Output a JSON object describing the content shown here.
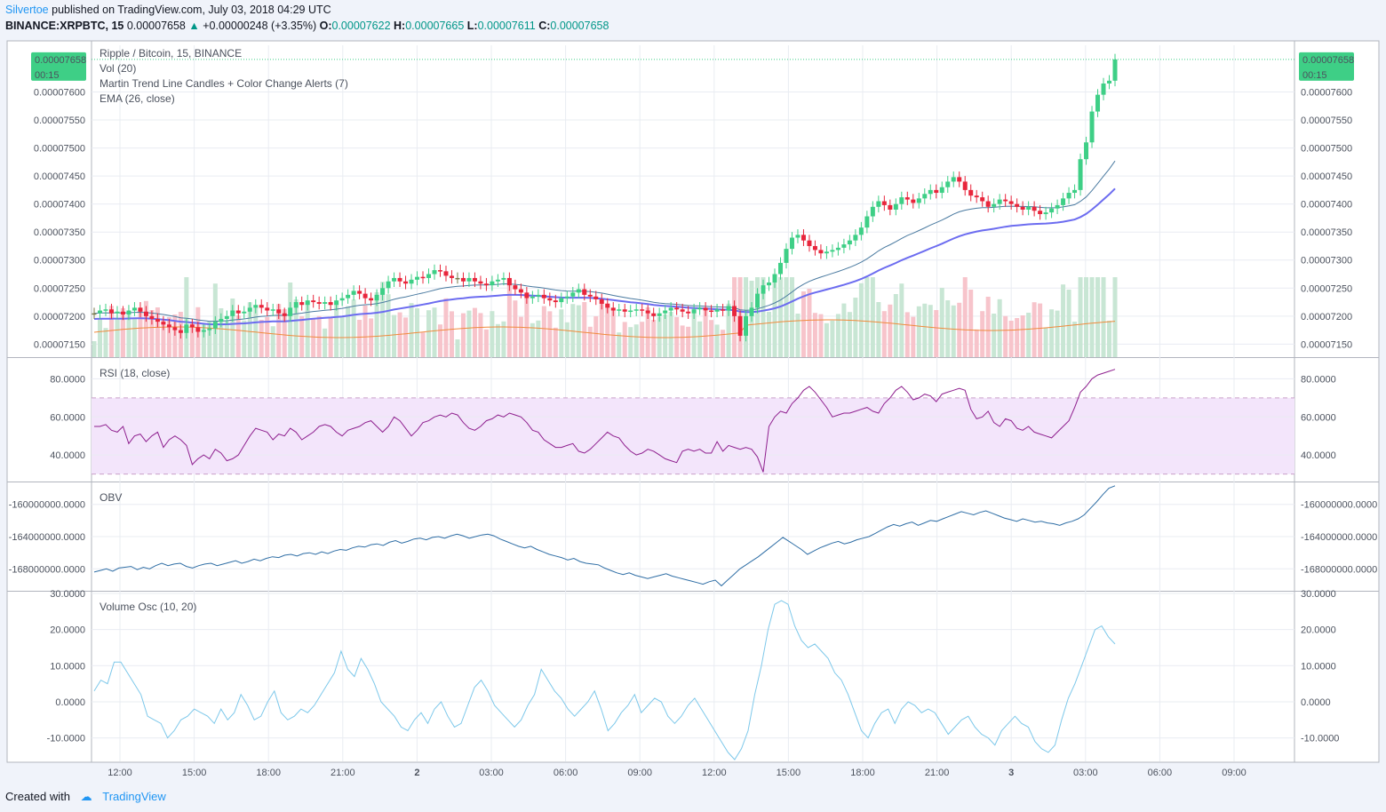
{
  "header": {
    "author": "Silvertoe",
    "published": "published on TradingView.com, July 03, 2018 04:29 UTC",
    "symbol": "BINANCE:XRPBTC, 15",
    "price": "0.00007658",
    "change": "+0.00000248 (+3.35%)",
    "o_label": "O:",
    "o_value": "0.00007622",
    "h_label": "H:",
    "h_value": "0.00007665",
    "l_label": "L:",
    "l_value": "0.00007611",
    "c_label": "C:",
    "c_value": "0.00007658"
  },
  "footer": {
    "created_with": "Created with",
    "brand": "TradingView"
  },
  "colors": {
    "up": "#3ecf86",
    "down": "#e8263c",
    "neutral": "#7a7a4a",
    "vol_up": "#c8e6d4",
    "vol_down": "#f7c4cb",
    "trend": "#6c6cf0",
    "ema": "#4a7aa0",
    "vol_ma": "#f08a3c",
    "rsi": "#8e1f8e",
    "rsi_band": "#f3e5fb",
    "obv": "#2f6ea5",
    "vosc": "#7dc8ea",
    "price_tag": "#3ecf86"
  },
  "chart_data": [
    {
      "id": "price",
      "type": "candlestick",
      "title": "Ripple / Bitcoin, 15, BINANCE",
      "legend": [
        "Vol (20)",
        "Martin Trend Line Candles + Color Change Alerts (7)",
        "EMA (26, close)"
      ],
      "y_ticks": [
        "0.00007600",
        "0.00007550",
        "0.00007500",
        "0.00007450",
        "0.00007400",
        "0.00007350",
        "0.00007300",
        "0.00007250",
        "0.00007200",
        "0.00007150"
      ],
      "ylim": [
        7.13e-05,
        7.68e-05
      ],
      "last_price_tag": "0.00007658",
      "countdown": "00:15",
      "close": [
        7.205e-05,
        7.21e-05,
        7.212e-05,
        7.205e-05,
        7.208e-05,
        7.203e-05,
        7.21e-05,
        7.215e-05,
        7.208e-05,
        7.2e-05,
        7.195e-05,
        7.19e-05,
        7.185e-05,
        7.18e-05,
        7.175e-05,
        7.17e-05,
        7.185e-05,
        7.18e-05,
        7.172e-05,
        7.175e-05,
        7.178e-05,
        7.19e-05,
        7.195e-05,
        7.2e-05,
        7.21e-05,
        7.205e-05,
        7.208e-05,
        7.215e-05,
        7.22e-05,
        7.215e-05,
        7.21e-05,
        7.212e-05,
        7.205e-05,
        7.2e-05,
        7.215e-05,
        7.225e-05,
        7.22e-05,
        7.228e-05,
        7.225e-05,
        7.222e-05,
        7.225e-05,
        7.22e-05,
        7.228e-05,
        7.232e-05,
        7.238e-05,
        7.245e-05,
        7.24e-05,
        7.232e-05,
        7.228e-05,
        7.238e-05,
        7.25e-05,
        7.262e-05,
        7.268e-05,
        7.262e-05,
        7.258e-05,
        7.265e-05,
        7.27e-05,
        7.268e-05,
        7.275e-05,
        7.282e-05,
        7.28e-05,
        7.272e-05,
        7.268e-05,
        7.268e-05,
        7.262e-05,
        7.268e-05,
        7.262e-05,
        7.258e-05,
        7.255e-05,
        7.262e-05,
        7.265e-05,
        7.268e-05,
        7.255e-05,
        7.248e-05,
        7.242e-05,
        7.232e-05,
        7.235e-05,
        7.238e-05,
        7.232e-05,
        7.228e-05,
        7.225e-05,
        7.232e-05,
        7.235e-05,
        7.242e-05,
        7.248e-05,
        7.238e-05,
        7.235e-05,
        7.23e-05,
        7.222e-05,
        7.215e-05,
        7.21e-05,
        7.212e-05,
        7.208e-05,
        7.21e-05,
        7.212e-05,
        7.21e-05,
        7.205e-05,
        7.2e-05,
        7.205e-05,
        7.21e-05,
        7.215e-05,
        7.212e-05,
        7.208e-05,
        7.205e-05,
        7.212e-05,
        7.215e-05,
        7.21e-05,
        7.208e-05,
        7.212e-05,
        7.21e-05,
        7.218e-05,
        7.2e-05,
        7.165e-05,
        7.2e-05,
        7.215e-05,
        7.24e-05,
        7.255e-05,
        7.26e-05,
        7.275e-05,
        7.295e-05,
        7.32e-05,
        7.34e-05,
        7.345e-05,
        7.335e-05,
        7.325e-05,
        7.318e-05,
        7.312e-05,
        7.315e-05,
        7.318e-05,
        7.322e-05,
        7.328e-05,
        7.335e-05,
        7.345e-05,
        7.358e-05,
        7.378e-05,
        7.395e-05,
        7.405e-05,
        7.398e-05,
        7.39e-05,
        7.4e-05,
        7.412e-05,
        7.408e-05,
        7.402e-05,
        7.41e-05,
        7.418e-05,
        7.425e-05,
        7.42e-05,
        7.43e-05,
        7.44e-05,
        7.448e-05,
        7.44e-05,
        7.425e-05,
        7.415e-05,
        7.412e-05,
        7.405e-05,
        7.395e-05,
        7.4e-05,
        7.408e-05,
        7.405e-05,
        7.4e-05,
        7.395e-05,
        7.39e-05,
        7.395e-05,
        7.388e-05,
        7.382e-05,
        7.385e-05,
        7.392e-05,
        7.398e-05,
        7.41e-05,
        7.42e-05,
        7.425e-05,
        7.48e-05,
        7.51e-05,
        7.565e-05,
        7.595e-05,
        7.615e-05,
        7.62e-05,
        7.658e-05
      ]
    },
    {
      "id": "rsi",
      "type": "line",
      "title": "RSI (18, close)",
      "y_ticks": [
        "80.0000",
        "60.0000",
        "40.0000"
      ],
      "ylim": [
        27,
        90
      ],
      "band": [
        30,
        70
      ],
      "values": [
        55,
        55,
        56,
        53,
        52,
        55,
        46,
        50,
        51,
        47,
        50,
        52,
        44,
        48,
        50,
        48,
        45,
        35,
        38,
        40,
        38,
        43,
        41,
        37,
        38,
        40,
        45,
        50,
        54,
        53,
        52,
        48,
        51,
        50,
        54,
        52,
        48,
        50,
        52,
        55,
        56,
        55,
        52,
        50,
        53,
        54,
        55,
        57,
        58,
        55,
        52,
        55,
        60,
        58,
        54,
        50,
        53,
        57,
        58,
        60,
        61,
        60,
        62,
        61,
        57,
        54,
        53,
        55,
        58,
        59,
        61,
        60,
        62,
        61,
        60,
        57,
        53,
        52,
        48,
        46,
        44,
        44,
        45,
        46,
        42,
        41,
        43,
        46,
        49,
        52,
        50,
        49,
        45,
        42,
        40,
        41,
        43,
        42,
        40,
        38,
        37,
        36,
        42,
        43,
        42,
        43,
        41,
        41,
        47,
        42,
        45,
        44,
        43,
        44,
        43,
        39,
        31,
        55,
        60,
        63,
        62,
        67,
        70,
        74,
        76,
        73,
        69,
        65,
        60,
        61,
        62,
        62,
        63,
        64,
        65,
        63,
        62,
        67,
        70,
        74,
        76,
        73,
        69,
        70,
        72,
        71,
        68,
        72,
        73,
        74,
        75,
        74,
        64,
        59,
        60,
        63,
        57,
        55,
        59,
        58,
        54,
        53,
        55,
        52,
        51,
        50,
        49,
        52,
        55,
        58,
        65,
        73,
        76,
        80,
        82,
        83,
        84,
        85
      ]
    },
    {
      "id": "obv",
      "type": "line",
      "title": "OBV",
      "y_ticks": [
        "-160000000.0000",
        "-164000000.0000",
        "-168000000.0000"
      ],
      "ylim": [
        -170500000,
        -157500000
      ],
      "values": [
        -168400000,
        -168200000,
        -168000000,
        -168300000,
        -167900000,
        -167800000,
        -167700000,
        -168100000,
        -167800000,
        -168000000,
        -167600000,
        -167300000,
        -167600000,
        -167400000,
        -167300000,
        -167700000,
        -167900000,
        -167600000,
        -167400000,
        -167300000,
        -167600000,
        -167400000,
        -167200000,
        -167000000,
        -167300000,
        -167100000,
        -166800000,
        -167000000,
        -166700000,
        -166500000,
        -166600000,
        -166300000,
        -166200000,
        -166400000,
        -166100000,
        -166000000,
        -166200000,
        -165900000,
        -166100000,
        -165800000,
        -165600000,
        -165700000,
        -165400000,
        -165200000,
        -165300000,
        -165000000,
        -164900000,
        -165100000,
        -164700000,
        -164500000,
        -164800000,
        -164600000,
        -164300000,
        -164200000,
        -164400000,
        -164100000,
        -164000000,
        -164200000,
        -163900000,
        -163700000,
        -163900000,
        -164200000,
        -164000000,
        -163800000,
        -163700000,
        -163900000,
        -164300000,
        -164600000,
        -164900000,
        -165200000,
        -165400000,
        -165200000,
        -165600000,
        -165900000,
        -166200000,
        -166400000,
        -166600000,
        -166900000,
        -166700000,
        -167100000,
        -167300000,
        -167400000,
        -167500000,
        -167900000,
        -168200000,
        -168500000,
        -168700000,
        -168500000,
        -168800000,
        -169000000,
        -169200000,
        -169000000,
        -168800000,
        -168600000,
        -168900000,
        -169100000,
        -169300000,
        -169500000,
        -169700000,
        -169900000,
        -169600000,
        -169400000,
        -170100000,
        -169400000,
        -168700000,
        -168000000,
        -167500000,
        -167000000,
        -166500000,
        -165900000,
        -165300000,
        -164700000,
        -164100000,
        -164600000,
        -165100000,
        -165600000,
        -166200000,
        -165800000,
        -165400000,
        -165100000,
        -164800000,
        -164600000,
        -164900000,
        -164700000,
        -164400000,
        -164200000,
        -164000000,
        -163600000,
        -163200000,
        -162800000,
        -162500000,
        -162700000,
        -162400000,
        -162200000,
        -162600000,
        -162300000,
        -162000000,
        -162100000,
        -161800000,
        -161500000,
        -161200000,
        -160900000,
        -161100000,
        -161300000,
        -161000000,
        -160800000,
        -161100000,
        -161400000,
        -161700000,
        -161900000,
        -162100000,
        -161800000,
        -162000000,
        -162200000,
        -162100000,
        -162300000,
        -162400000,
        -162600000,
        -162300000,
        -162100000,
        -161800000,
        -161300000,
        -160500000,
        -159700000,
        -158800000,
        -158000000,
        -157700000
      ]
    },
    {
      "id": "vosc",
      "type": "line",
      "title": "Volume Osc (10, 20)",
      "y_ticks": [
        "30.0000",
        "20.0000",
        "10.0000",
        "0.0000",
        "-10.0000"
      ],
      "ylim": [
        -16,
        30
      ],
      "zero_line": 0,
      "values": [
        3,
        6,
        5,
        11,
        11,
        8,
        5,
        2,
        -4,
        -5,
        -6,
        -10,
        -8,
        -5,
        -4,
        -2,
        -3,
        -4,
        -6,
        -2,
        -5,
        -3,
        2,
        -1,
        -5,
        -4,
        0,
        3,
        -3,
        -5,
        -4,
        -2,
        -3,
        -1,
        2,
        5,
        8,
        14,
        9,
        7,
        12,
        9,
        5,
        0,
        -2,
        -4,
        -7,
        -8,
        -5,
        -3,
        -6,
        -2,
        0,
        -4,
        -7,
        -6,
        -1,
        4,
        6,
        3,
        -1,
        -3,
        -5,
        -7,
        -5,
        -1,
        2,
        9,
        6,
        3,
        1,
        -2,
        -4,
        -2,
        0,
        3,
        -2,
        -8,
        -6,
        -3,
        -1,
        2,
        -3,
        -1,
        1,
        0,
        -4,
        -6,
        -4,
        -1,
        1,
        -2,
        -5,
        -8,
        -11,
        -14,
        -16,
        -13,
        -8,
        2,
        10,
        20,
        27,
        28,
        27,
        21,
        17,
        15,
        16,
        14,
        12,
        8,
        6,
        2,
        -3,
        -8,
        -10,
        -6,
        -3,
        -2,
        -6,
        -2,
        0,
        -1,
        -3,
        -2,
        -3,
        -6,
        -9,
        -7,
        -5,
        -4,
        -7,
        -9,
        -10,
        -12,
        -8,
        -6,
        -4,
        -6,
        -7,
        -11,
        -13,
        -14,
        -12,
        -5,
        1,
        5,
        10,
        15,
        20,
        21,
        18,
        16
      ]
    }
  ],
  "x_axis": {
    "ticks": [
      "12:00",
      "15:00",
      "18:00",
      "21:00",
      "2",
      "03:00",
      "06:00",
      "09:00",
      "12:00",
      "15:00",
      "18:00",
      "21:00",
      "3",
      "03:00",
      "06:00",
      "09:00"
    ]
  }
}
